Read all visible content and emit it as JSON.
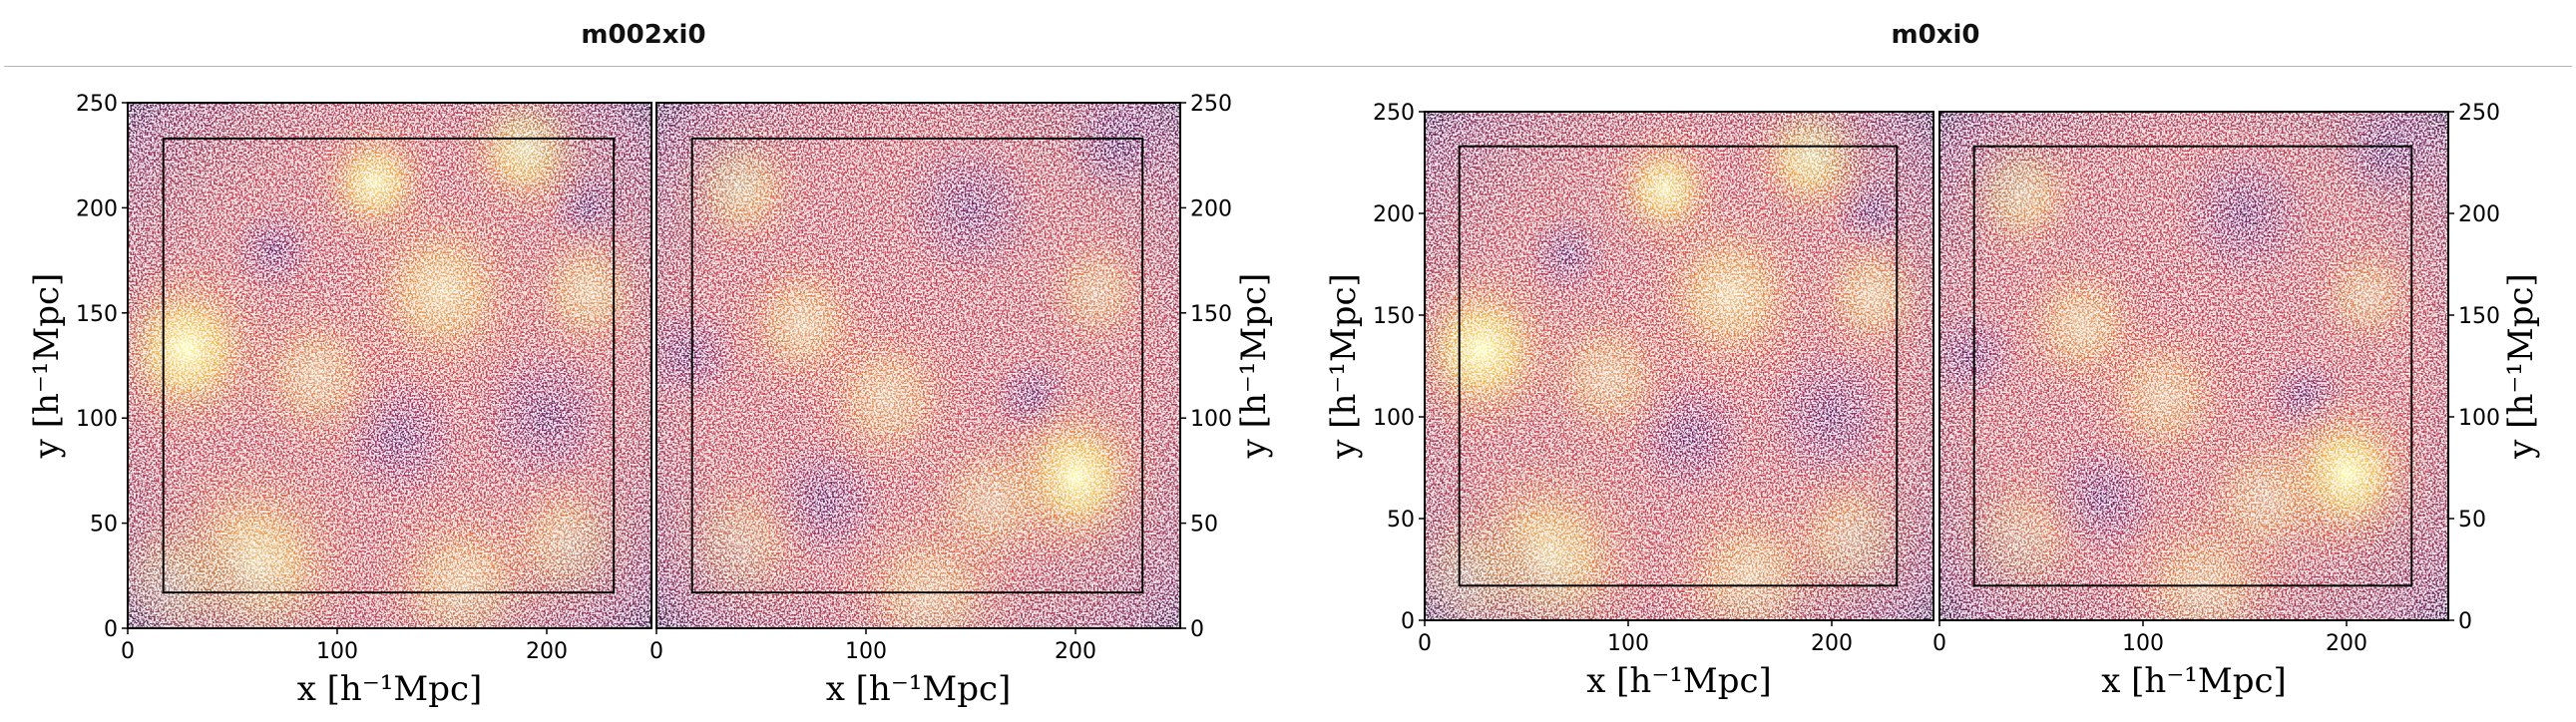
{
  "chart_data": [
    {
      "type": "heatmap",
      "title": "m002xi0",
      "xlabel": "x [h⁻¹Mpc]",
      "ylabel": "y [h⁻¹Mpc]",
      "xlim": [
        0,
        250
      ],
      "ylim": [
        0,
        250
      ],
      "x_ticks": [
        0,
        100,
        200
      ],
      "y_ticks": [
        0,
        50,
        100,
        150,
        200,
        250
      ],
      "tick_labels": {
        "x": [
          "0",
          "100",
          "200"
        ],
        "y": [
          "0",
          "50",
          "100",
          "150",
          "200",
          "250"
        ]
      },
      "colormap": "inferno",
      "inner_box": {
        "x": [
          17,
          232
        ],
        "y": [
          17,
          233
        ]
      },
      "panels": [
        {
          "name": "left",
          "hotspots": [
            {
              "x": 28,
              "y": 133,
              "r": 28,
              "v": 1.0
            },
            {
              "x": 118,
              "y": 212,
              "r": 20,
              "v": 0.9
            },
            {
              "x": 190,
              "y": 228,
              "r": 22,
              "v": 0.9
            },
            {
              "x": 60,
              "y": 30,
              "r": 35,
              "v": 0.75
            },
            {
              "x": 150,
              "y": 160,
              "r": 30,
              "v": 0.7
            },
            {
              "x": 20,
              "y": 20,
              "r": 25,
              "v": 0.7
            },
            {
              "x": 160,
              "y": 20,
              "r": 30,
              "v": 0.6
            },
            {
              "x": 210,
              "y": 40,
              "r": 25,
              "v": 0.55
            },
            {
              "x": 90,
              "y": 120,
              "r": 25,
              "v": 0.55
            },
            {
              "x": 220,
              "y": 160,
              "r": 22,
              "v": 0.6
            }
          ],
          "voids": [
            {
              "x": 130,
              "y": 90,
              "r": 30
            },
            {
              "x": 200,
              "y": 100,
              "r": 35
            },
            {
              "x": 70,
              "y": 180,
              "r": 20
            },
            {
              "x": 220,
              "y": 200,
              "r": 20
            }
          ]
        },
        {
          "name": "right",
          "hotspots": [
            {
              "x": 200,
              "y": 72,
              "r": 26,
              "v": 1.0
            },
            {
              "x": 40,
              "y": 210,
              "r": 22,
              "v": 0.65
            },
            {
              "x": 70,
              "y": 145,
              "r": 24,
              "v": 0.6
            },
            {
              "x": 110,
              "y": 110,
              "r": 26,
              "v": 0.55
            },
            {
              "x": 130,
              "y": 15,
              "r": 30,
              "v": 0.55
            },
            {
              "x": 210,
              "y": 160,
              "r": 20,
              "v": 0.5
            },
            {
              "x": 160,
              "y": 60,
              "r": 25,
              "v": 0.5
            },
            {
              "x": 40,
              "y": 40,
              "r": 25,
              "v": 0.45
            }
          ],
          "voids": [
            {
              "x": 15,
              "y": 130,
              "r": 25
            },
            {
              "x": 150,
              "y": 200,
              "r": 35
            },
            {
              "x": 80,
              "y": 60,
              "r": 30
            },
            {
              "x": 220,
              "y": 230,
              "r": 25
            },
            {
              "x": 180,
              "y": 110,
              "r": 20
            }
          ]
        }
      ]
    },
    {
      "type": "heatmap",
      "title": "m0xi0",
      "xlabel": "x [h⁻¹Mpc]",
      "ylabel": "y [h⁻¹Mpc]",
      "xlim": [
        0,
        250
      ],
      "ylim": [
        0,
        250
      ],
      "x_ticks": [
        0,
        100,
        200
      ],
      "y_ticks": [
        0,
        50,
        100,
        150,
        200,
        250
      ],
      "tick_labels": {
        "x": [
          "0",
          "100",
          "200"
        ],
        "y": [
          "0",
          "50",
          "100",
          "150",
          "200",
          "250"
        ]
      },
      "colormap": "inferno",
      "inner_box": {
        "x": [
          17,
          232
        ],
        "y": [
          17,
          233
        ]
      },
      "panels": [
        {
          "name": "left",
          "hotspots": [
            {
              "x": 28,
              "y": 133,
              "r": 28,
              "v": 1.0
            },
            {
              "x": 118,
              "y": 212,
              "r": 20,
              "v": 0.9
            },
            {
              "x": 190,
              "y": 228,
              "r": 22,
              "v": 0.9
            },
            {
              "x": 60,
              "y": 30,
              "r": 35,
              "v": 0.75
            },
            {
              "x": 150,
              "y": 160,
              "r": 30,
              "v": 0.7
            },
            {
              "x": 20,
              "y": 20,
              "r": 25,
              "v": 0.7
            },
            {
              "x": 160,
              "y": 20,
              "r": 30,
              "v": 0.6
            },
            {
              "x": 210,
              "y": 40,
              "r": 25,
              "v": 0.55
            },
            {
              "x": 90,
              "y": 120,
              "r": 25,
              "v": 0.55
            },
            {
              "x": 220,
              "y": 160,
              "r": 22,
              "v": 0.6
            }
          ],
          "voids": [
            {
              "x": 130,
              "y": 90,
              "r": 30
            },
            {
              "x": 200,
              "y": 100,
              "r": 35
            },
            {
              "x": 70,
              "y": 180,
              "r": 20
            },
            {
              "x": 220,
              "y": 200,
              "r": 20
            }
          ]
        },
        {
          "name": "right",
          "hotspots": [
            {
              "x": 200,
              "y": 72,
              "r": 26,
              "v": 1.0
            },
            {
              "x": 40,
              "y": 210,
              "r": 22,
              "v": 0.65
            },
            {
              "x": 70,
              "y": 145,
              "r": 24,
              "v": 0.6
            },
            {
              "x": 110,
              "y": 110,
              "r": 26,
              "v": 0.55
            },
            {
              "x": 130,
              "y": 15,
              "r": 30,
              "v": 0.55
            },
            {
              "x": 210,
              "y": 160,
              "r": 20,
              "v": 0.5
            },
            {
              "x": 160,
              "y": 60,
              "r": 25,
              "v": 0.5
            },
            {
              "x": 40,
              "y": 40,
              "r": 25,
              "v": 0.45
            }
          ],
          "voids": [
            {
              "x": 15,
              "y": 130,
              "r": 25
            },
            {
              "x": 150,
              "y": 200,
              "r": 35
            },
            {
              "x": 80,
              "y": 60,
              "r": 30
            },
            {
              "x": 220,
              "y": 230,
              "r": 25
            },
            {
              "x": 180,
              "y": 110,
              "r": 20
            }
          ]
        }
      ]
    }
  ]
}
